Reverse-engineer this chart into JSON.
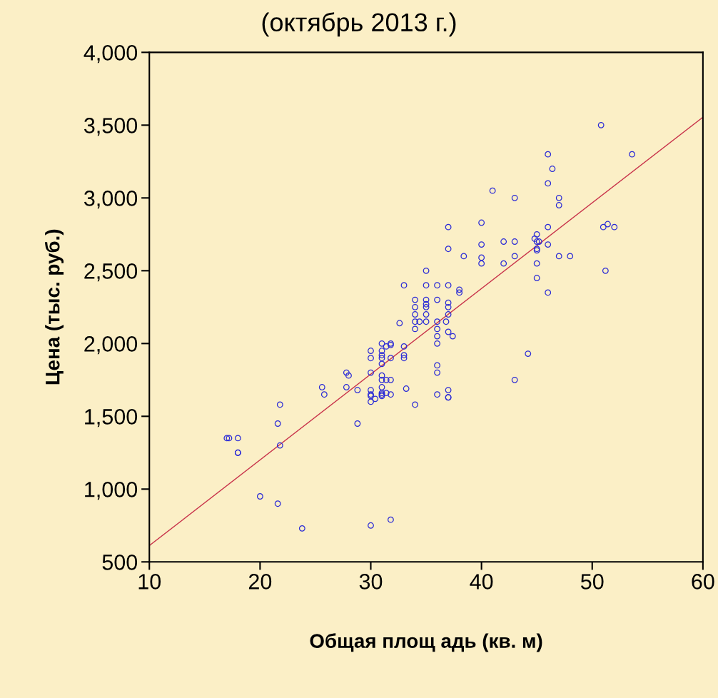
{
  "chart_data": {
    "type": "scatter",
    "title": "(октябрь 2013 г.)",
    "xlabel": "Общая площ адь (кв. м)",
    "ylabel": "Цена (тыс. руб.)",
    "xlim": [
      10,
      60
    ],
    "xticks": [
      10,
      20,
      30,
      40,
      50,
      60
    ],
    "ylim": [
      500,
      4000
    ],
    "yticks": [
      500,
      {
        "value": 1000,
        "label": "1,000"
      },
      {
        "value": 1500,
        "label": "1,500"
      },
      {
        "value": 2000,
        "label": "2,000"
      },
      {
        "value": 2500,
        "label": "2,500"
      },
      {
        "value": 3000,
        "label": "3,000"
      },
      {
        "value": 3500,
        "label": "3,500"
      },
      {
        "value": 4000,
        "label": "4,000"
      }
    ],
    "grid": false,
    "legend": false,
    "marker": "circle",
    "series": [
      {
        "color": "#2b2bd6",
        "x": [
          17,
          17.2,
          18,
          18,
          18,
          20,
          21.6,
          21.6,
          21.8,
          21.8,
          23.8,
          25.6,
          25.8,
          27.8,
          28,
          27.8,
          28.8,
          28.8,
          30,
          30,
          30,
          30,
          30,
          30,
          30,
          30,
          30.4,
          31,
          31,
          31,
          31,
          31,
          31,
          31,
          31,
          31,
          31,
          31,
          31.4,
          31.4,
          31.4,
          31.8,
          31.8,
          31.8,
          31.8,
          31.8,
          31.8,
          32.6,
          33,
          33,
          33,
          33,
          33.2,
          34,
          34,
          34,
          34,
          34,
          34,
          34.4,
          35,
          35,
          35,
          35,
          35,
          35,
          35,
          36,
          36,
          36,
          36,
          36,
          36,
          36,
          36,
          36,
          36.8,
          37,
          37,
          37,
          37,
          37,
          37,
          37,
          37,
          37,
          37,
          37.4,
          38,
          38,
          38.4,
          40,
          40,
          40,
          40,
          41,
          42,
          42,
          43,
          43,
          43,
          43,
          44.2,
          44.8,
          45,
          45,
          45,
          45,
          45,
          45,
          45.2,
          46,
          46,
          46,
          46,
          46,
          46.4,
          47,
          47,
          47,
          48,
          50.8,
          51,
          51.2,
          51.4,
          52,
          53.6
        ],
        "values": [
          1350,
          1350,
          1350,
          1250,
          1250,
          950,
          1450,
          900,
          1300,
          1580,
          730,
          1700,
          1650,
          1800,
          1780,
          1700,
          1450,
          1680,
          1950,
          1900,
          1800,
          1680,
          1650,
          1640,
          1600,
          750,
          1620,
          2000,
          1950,
          1920,
          1900,
          1860,
          1780,
          1750,
          1700,
          1660,
          1650,
          1640,
          1980,
          1750,
          1660,
          2000,
          1990,
          1900,
          1750,
          1650,
          790,
          2140,
          2400,
          1980,
          1920,
          1900,
          1690,
          2300,
          2250,
          2200,
          2150,
          2100,
          1580,
          2150,
          2500,
          2400,
          2300,
          2270,
          2250,
          2200,
          2150,
          2400,
          2300,
          2150,
          2100,
          2050,
          2000,
          1850,
          1800,
          1650,
          2150,
          2800,
          2650,
          2400,
          2280,
          2250,
          2200,
          2080,
          1680,
          1630,
          1630,
          2050,
          2370,
          2350,
          2600,
          2830,
          2680,
          2590,
          2550,
          3050,
          2700,
          2550,
          3000,
          2700,
          2600,
          1750,
          1930,
          2720,
          2750,
          2700,
          2650,
          2640,
          2550,
          2450,
          2700,
          3300,
          3100,
          2800,
          2680,
          2350,
          3200,
          3000,
          2950,
          2600,
          2600,
          3500,
          2800,
          2500,
          2820,
          2800,
          3300
        ]
      },
      {
        "type": "line",
        "color": "#c8324a",
        "marker": "none",
        "x": [
          10,
          60
        ],
        "values": [
          612,
          3555
        ]
      }
    ]
  }
}
